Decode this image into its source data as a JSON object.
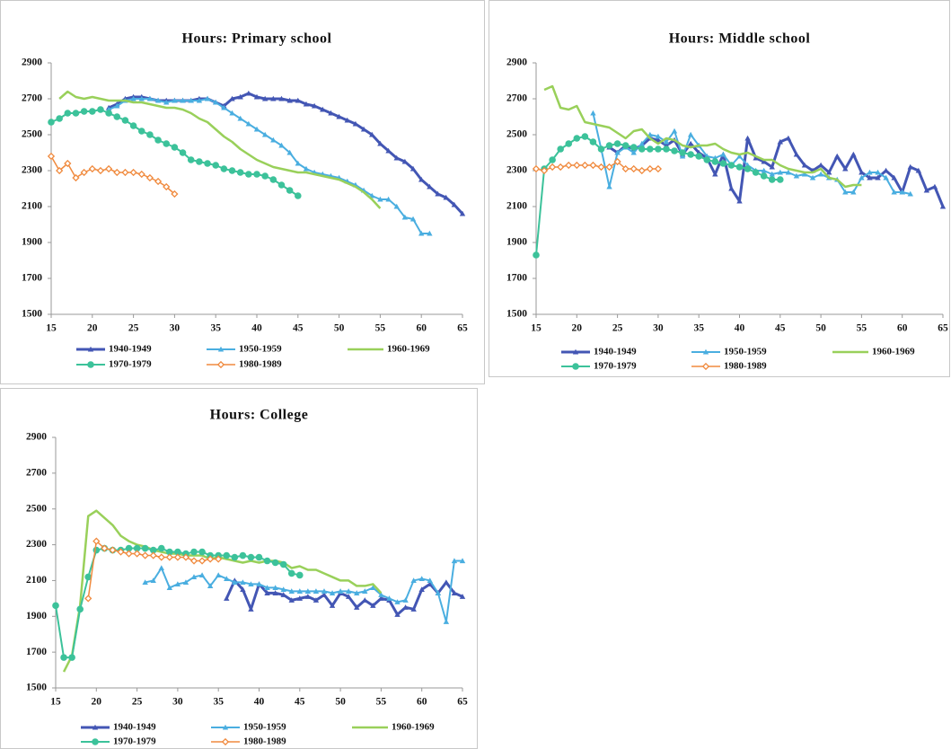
{
  "chart_data": [
    {
      "type": "line",
      "title": "Hours: Primary school",
      "x": [
        15,
        16,
        17,
        18,
        19,
        20,
        21,
        22,
        23,
        24,
        25,
        26,
        27,
        28,
        29,
        30,
        31,
        32,
        33,
        34,
        35,
        36,
        37,
        38,
        39,
        40,
        41,
        42,
        43,
        44,
        45,
        46,
        47,
        48,
        49,
        50,
        51,
        52,
        53,
        54,
        55,
        56,
        57,
        58,
        59,
        60,
        61,
        62,
        63,
        64,
        65
      ],
      "xlim": [
        15,
        65
      ],
      "ylim": [
        1500,
        2900
      ],
      "xticks": [
        15,
        20,
        25,
        30,
        35,
        40,
        45,
        50,
        55,
        60,
        65
      ],
      "yticks": [
        1500,
        1700,
        1900,
        2100,
        2300,
        2500,
        2700,
        2900
      ],
      "grid": false,
      "series": [
        {
          "name": "1940-1949",
          "color": "#4356b4",
          "marker": "triangle",
          "width": 3,
          "values": [
            null,
            null,
            null,
            null,
            null,
            null,
            null,
            2650,
            2670,
            2700,
            2710,
            2710,
            2700,
            2690,
            2690,
            2690,
            2690,
            2690,
            2700,
            2700,
            2680,
            2660,
            2700,
            2710,
            2730,
            2710,
            2700,
            2700,
            2700,
            2690,
            2690,
            2670,
            2660,
            2640,
            2620,
            2600,
            2580,
            2560,
            2530,
            2500,
            2450,
            2410,
            2370,
            2350,
            2310,
            2250,
            2210,
            2170,
            2150,
            2110,
            2060
          ]
        },
        {
          "name": "1950-1959",
          "color": "#4aaee0",
          "marker": "triangle",
          "width": 2,
          "values": [
            null,
            null,
            null,
            null,
            null,
            null,
            null,
            2640,
            2660,
            2690,
            2700,
            2700,
            2700,
            2690,
            2680,
            2690,
            2690,
            2690,
            2690,
            2700,
            2680,
            2650,
            2620,
            2590,
            2560,
            2530,
            2500,
            2470,
            2440,
            2400,
            2340,
            2310,
            2290,
            2280,
            2270,
            2260,
            2240,
            2220,
            2190,
            2160,
            2140,
            2140,
            2100,
            2040,
            2030,
            1950,
            1950,
            null,
            null,
            null,
            null
          ]
        },
        {
          "name": "1960-1969",
          "color": "#99d05a",
          "marker": "none",
          "width": 2.5,
          "values": [
            null,
            2700,
            2740,
            2710,
            2700,
            2710,
            2700,
            2690,
            2690,
            2690,
            2680,
            2680,
            2670,
            2660,
            2650,
            2650,
            2640,
            2620,
            2590,
            2570,
            2530,
            2490,
            2460,
            2420,
            2390,
            2360,
            2340,
            2320,
            2310,
            2300,
            2290,
            2290,
            2280,
            2270,
            2260,
            2250,
            2230,
            2210,
            2180,
            2140,
            2090,
            null,
            null,
            null,
            null,
            null,
            null,
            null,
            null,
            null,
            null
          ]
        },
        {
          "name": "1970-1979",
          "color": "#3cc29a",
          "marker": "circle",
          "width": 2,
          "values": [
            2570,
            2590,
            2620,
            2620,
            2630,
            2630,
            2640,
            2620,
            2600,
            2580,
            2550,
            2520,
            2500,
            2470,
            2450,
            2430,
            2400,
            2360,
            2350,
            2340,
            2330,
            2310,
            2300,
            2290,
            2280,
            2280,
            2270,
            2250,
            2220,
            2190,
            2160,
            null,
            null,
            null,
            null,
            null,
            null,
            null,
            null,
            null,
            null,
            null,
            null,
            null,
            null,
            null,
            null,
            null,
            null,
            null,
            null
          ]
        },
        {
          "name": "1980-1989",
          "color": "#f08a3e",
          "marker": "diamond-open",
          "width": 1.5,
          "values": [
            2380,
            2300,
            2340,
            2260,
            2290,
            2310,
            2300,
            2310,
            2290,
            2290,
            2290,
            2280,
            2260,
            2240,
            2210,
            2170,
            null,
            null,
            null,
            null,
            null,
            null,
            null,
            null,
            null,
            null,
            null,
            null,
            null,
            null,
            null,
            null,
            null,
            null,
            null,
            null,
            null,
            null,
            null,
            null,
            null,
            null,
            null,
            null,
            null,
            null,
            null,
            null,
            null,
            null,
            null
          ]
        }
      ]
    },
    {
      "type": "line",
      "title": "Hours: Middle school",
      "x": [
        15,
        16,
        17,
        18,
        19,
        20,
        21,
        22,
        23,
        24,
        25,
        26,
        27,
        28,
        29,
        30,
        31,
        32,
        33,
        34,
        35,
        36,
        37,
        38,
        39,
        40,
        41,
        42,
        43,
        44,
        45,
        46,
        47,
        48,
        49,
        50,
        51,
        52,
        53,
        54,
        55,
        56,
        57,
        58,
        59,
        60,
        61,
        62,
        63,
        64,
        65
      ],
      "xlim": [
        15,
        65
      ],
      "ylim": [
        1500,
        2900
      ],
      "xticks": [
        15,
        20,
        25,
        30,
        35,
        40,
        45,
        50,
        55,
        60,
        65
      ],
      "yticks": [
        1500,
        1700,
        1900,
        2100,
        2300,
        2500,
        2700,
        2900
      ],
      "grid": false,
      "series": [
        {
          "name": "1940-1949",
          "color": "#4356b4",
          "marker": "triangle",
          "width": 3,
          "values": [
            null,
            null,
            null,
            null,
            null,
            null,
            null,
            null,
            null,
            2430,
            2400,
            2440,
            2420,
            2440,
            2480,
            2470,
            2440,
            2470,
            2390,
            2450,
            2400,
            2370,
            2280,
            2390,
            2200,
            2130,
            2480,
            2370,
            2350,
            2320,
            2460,
            2480,
            2390,
            2330,
            2300,
            2330,
            2290,
            2380,
            2310,
            2390,
            2290,
            2260,
            2260,
            2300,
            2260,
            2180,
            2320,
            2300,
            2190,
            2210,
            2100
          ]
        },
        {
          "name": "1950-1959",
          "color": "#4aaee0",
          "marker": "triangle",
          "width": 2,
          "values": [
            null,
            null,
            null,
            null,
            null,
            null,
            null,
            2620,
            2420,
            2210,
            2400,
            2430,
            2400,
            2450,
            2500,
            2490,
            2460,
            2520,
            2380,
            2500,
            2440,
            2380,
            2370,
            2390,
            2330,
            2380,
            2330,
            2300,
            2300,
            2280,
            2290,
            2290,
            2270,
            2280,
            2260,
            2280,
            2260,
            2250,
            2180,
            2180,
            2260,
            2290,
            2290,
            2260,
            2180,
            2180,
            2170,
            null,
            null,
            null,
            null
          ]
        },
        {
          "name": "1960-1969",
          "color": "#99d05a",
          "marker": "none",
          "width": 2.5,
          "values": [
            null,
            2750,
            2770,
            2650,
            2640,
            2660,
            2570,
            2560,
            2550,
            2540,
            2510,
            2480,
            2520,
            2530,
            2480,
            2450,
            2480,
            2470,
            2440,
            2430,
            2440,
            2440,
            2450,
            2420,
            2400,
            2390,
            2400,
            2380,
            2360,
            2360,
            2330,
            2310,
            2300,
            2290,
            2290,
            2310,
            2260,
            2250,
            2210,
            2220,
            2220,
            null,
            null,
            null,
            null,
            null,
            null,
            null,
            null,
            null,
            null
          ]
        },
        {
          "name": "1970-1979",
          "color": "#3cc29a",
          "marker": "circle",
          "width": 2,
          "values": [
            1830,
            2310,
            2360,
            2420,
            2450,
            2480,
            2490,
            2460,
            2420,
            2440,
            2450,
            2440,
            2430,
            2420,
            2420,
            2420,
            2420,
            2410,
            2400,
            2390,
            2380,
            2360,
            2350,
            2340,
            2330,
            2320,
            2310,
            2290,
            2270,
            2250,
            2250,
            null,
            null,
            null,
            null,
            null,
            null,
            null,
            null,
            null,
            null,
            null,
            null,
            null,
            null,
            null,
            null,
            null,
            null,
            null,
            null
          ]
        },
        {
          "name": "1980-1989",
          "color": "#f08a3e",
          "marker": "diamond-open",
          "width": 1.5,
          "values": [
            2310,
            2300,
            2320,
            2320,
            2330,
            2330,
            2330,
            2330,
            2320,
            2320,
            2350,
            2310,
            2310,
            2300,
            2310,
            2310,
            null,
            null,
            null,
            null,
            null,
            null,
            null,
            null,
            null,
            null,
            null,
            null,
            null,
            null,
            null,
            null,
            null,
            null,
            null,
            null,
            null,
            null,
            null,
            null,
            null,
            null,
            null,
            null,
            null,
            null,
            null,
            null,
            null,
            null,
            null
          ]
        }
      ]
    },
    {
      "type": "line",
      "title": "Hours: College",
      "x": [
        15,
        16,
        17,
        18,
        19,
        20,
        21,
        22,
        23,
        24,
        25,
        26,
        27,
        28,
        29,
        30,
        31,
        32,
        33,
        34,
        35,
        36,
        37,
        38,
        39,
        40,
        41,
        42,
        43,
        44,
        45,
        46,
        47,
        48,
        49,
        50,
        51,
        52,
        53,
        54,
        55,
        56,
        57,
        58,
        59,
        60,
        61,
        62,
        63,
        64,
        65
      ],
      "xlim": [
        15,
        65
      ],
      "ylim": [
        1500,
        2900
      ],
      "xticks": [
        15,
        20,
        25,
        30,
        35,
        40,
        45,
        50,
        55,
        60,
        65
      ],
      "yticks": [
        1500,
        1700,
        1900,
        2100,
        2300,
        2500,
        2700,
        2900
      ],
      "grid": false,
      "series": [
        {
          "name": "1940-1949",
          "color": "#4356b4",
          "marker": "triangle",
          "width": 3,
          "values": [
            null,
            null,
            null,
            null,
            null,
            null,
            null,
            null,
            null,
            null,
            null,
            null,
            null,
            null,
            null,
            null,
            null,
            null,
            null,
            null,
            null,
            2000,
            2100,
            2050,
            1940,
            2080,
            2030,
            2030,
            2020,
            1990,
            2000,
            2010,
            1990,
            2020,
            1960,
            2030,
            2010,
            1950,
            1990,
            1960,
            2000,
            1990,
            1910,
            1950,
            1940,
            2050,
            2080,
            2030,
            2090,
            2030,
            2010
          ]
        },
        {
          "name": "1950-1959",
          "color": "#4aaee0",
          "marker": "triangle",
          "width": 2,
          "values": [
            null,
            null,
            null,
            null,
            null,
            null,
            null,
            null,
            null,
            null,
            null,
            2090,
            2100,
            2170,
            2060,
            2080,
            2090,
            2120,
            2130,
            2070,
            2130,
            2110,
            2090,
            2090,
            2080,
            2080,
            2060,
            2060,
            2050,
            2040,
            2040,
            2040,
            2040,
            2040,
            2030,
            2040,
            2040,
            2030,
            2040,
            2060,
            2020,
            2000,
            1980,
            1990,
            2100,
            2110,
            2100,
            2030,
            1870,
            2210,
            2210
          ]
        },
        {
          "name": "1960-1969",
          "color": "#99d05a",
          "marker": "none",
          "width": 2.5,
          "values": [
            null,
            1590,
            1680,
            1960,
            2460,
            2490,
            2450,
            2410,
            2350,
            2320,
            2300,
            2290,
            2270,
            2260,
            2250,
            2250,
            2240,
            2240,
            2240,
            2220,
            2230,
            2220,
            2210,
            2200,
            2210,
            2200,
            2210,
            2210,
            2200,
            2170,
            2180,
            2160,
            2160,
            2140,
            2120,
            2100,
            2100,
            2070,
            2070,
            2080,
            2030,
            null,
            null,
            null,
            null,
            null,
            null,
            null,
            null,
            null,
            null
          ]
        },
        {
          "name": "1970-1979",
          "color": "#3cc29a",
          "marker": "circle",
          "width": 2,
          "values": [
            1960,
            1670,
            1670,
            1940,
            2120,
            2270,
            2280,
            2270,
            2270,
            2280,
            2280,
            2280,
            2270,
            2280,
            2260,
            2260,
            2250,
            2260,
            2260,
            2240,
            2240,
            2240,
            2230,
            2240,
            2230,
            2230,
            2210,
            2200,
            2190,
            2140,
            2130,
            null,
            null,
            null,
            null,
            null,
            null,
            null,
            null,
            null,
            null,
            null,
            null,
            null,
            null,
            null,
            null,
            null,
            null,
            null,
            null
          ]
        },
        {
          "name": "1980-1989",
          "color": "#f08a3e",
          "marker": "diamond-open",
          "width": 1.5,
          "values": [
            null,
            null,
            null,
            null,
            2000,
            2320,
            2280,
            2270,
            2260,
            2250,
            2250,
            2240,
            2240,
            2230,
            2230,
            2230,
            2230,
            2210,
            2210,
            2220,
            2220,
            null,
            null,
            null,
            null,
            null,
            null,
            null,
            null,
            null,
            null,
            null,
            null,
            null,
            null,
            null,
            null,
            null,
            null,
            null,
            null,
            null,
            null,
            null,
            null,
            null,
            null,
            null,
            null,
            null,
            null
          ]
        }
      ]
    }
  ]
}
